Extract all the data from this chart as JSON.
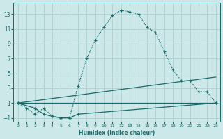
{
  "xlabel": "Humidex (Indice chaleur)",
  "bg_color": "#cce8e8",
  "line_color": "#1a6b6b",
  "grid_color": "#aed0d0",
  "xlim": [
    -0.5,
    23.5
  ],
  "ylim": [
    -1.5,
    14.5
  ],
  "xticks": [
    0,
    1,
    2,
    3,
    4,
    5,
    6,
    7,
    8,
    9,
    10,
    11,
    12,
    13,
    14,
    15,
    16,
    17,
    18,
    19,
    20,
    21,
    22,
    23
  ],
  "yticks": [
    -1,
    1,
    3,
    5,
    7,
    9,
    11,
    13
  ],
  "series1_x": [
    0,
    1,
    2,
    3,
    4,
    5,
    6,
    7,
    8,
    9,
    10,
    11,
    12,
    13,
    14,
    15,
    16,
    17,
    18,
    19,
    20,
    21,
    22,
    23
  ],
  "series1_y": [
    1.0,
    0.3,
    -0.5,
    0.3,
    -0.8,
    -1.0,
    -1.0,
    3.3,
    7.0,
    9.5,
    11.2,
    12.8,
    13.5,
    13.3,
    13.0,
    11.2,
    10.5,
    8.0,
    5.5,
    4.0,
    4.0,
    2.5,
    2.5,
    1.0
  ],
  "series2_x": [
    0,
    2,
    3,
    4,
    5,
    6,
    7,
    23
  ],
  "series2_y": [
    1.0,
    0.3,
    -0.5,
    -0.8,
    -1.0,
    -1.0,
    -0.5,
    1.0
  ],
  "series3_x": [
    0,
    23
  ],
  "series3_y": [
    1.0,
    1.0
  ],
  "series4_x": [
    0,
    23
  ],
  "series4_y": [
    1.0,
    4.5
  ]
}
